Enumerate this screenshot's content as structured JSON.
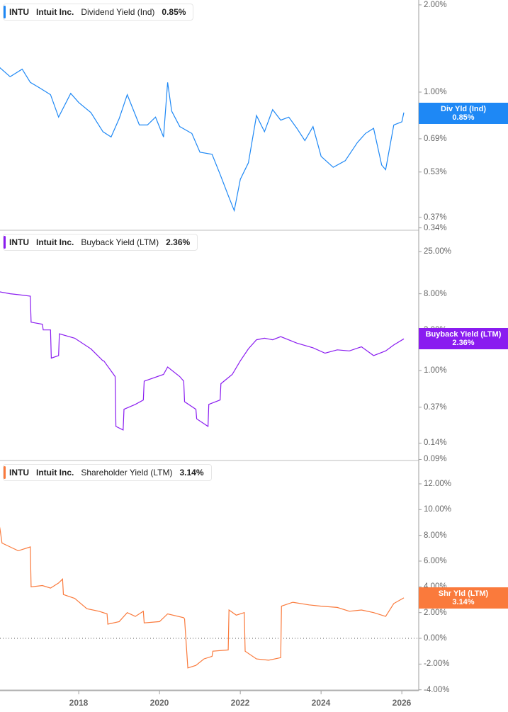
{
  "chart_data": [
    {
      "type": "line",
      "title": "INTU Intuit Inc. Dividend Yield (Ind) 0.85%",
      "ticker": "INTU",
      "company": "Intuit Inc.",
      "metric": "Dividend Yield (Ind)",
      "current_value": "0.85%",
      "tag_label": "Div Yld (Ind)",
      "color": "#1e88f5",
      "y_scale": "log",
      "yticks": [
        "2.00%",
        "1.00%",
        "0.85%",
        "0.69%",
        "0.53%",
        "0.37%",
        "0.34%"
      ],
      "ylim": [
        0.34,
        2.0
      ],
      "x": [
        2016.0,
        2016.3,
        2016.6,
        2016.8,
        2017.0,
        2017.3,
        2017.5,
        2017.8,
        2018.0,
        2018.3,
        2018.6,
        2018.8,
        2019.0,
        2019.2,
        2019.5,
        2019.7,
        2019.9,
        2020.1,
        2020.2,
        2020.3,
        2020.5,
        2020.8,
        2021.0,
        2021.3,
        2021.5,
        2021.7,
        2021.85,
        2022.0,
        2022.2,
        2022.4,
        2022.6,
        2022.8,
        2023.0,
        2023.2,
        2023.4,
        2023.6,
        2023.8,
        2024.0,
        2024.3,
        2024.6,
        2024.9,
        2025.1,
        2025.3,
        2025.5,
        2025.6,
        2025.8,
        2026.0,
        2026.05
      ],
      "values": [
        1.23,
        1.13,
        1.2,
        1.08,
        1.04,
        0.98,
        0.82,
        0.99,
        0.92,
        0.85,
        0.73,
        0.7,
        0.81,
        0.98,
        0.77,
        0.77,
        0.82,
        0.7,
        1.08,
        0.86,
        0.76,
        0.72,
        0.62,
        0.61,
        0.52,
        0.44,
        0.39,
        0.5,
        0.57,
        0.83,
        0.73,
        0.87,
        0.8,
        0.82,
        0.75,
        0.68,
        0.76,
        0.6,
        0.55,
        0.58,
        0.67,
        0.72,
        0.75,
        0.56,
        0.54,
        0.77,
        0.79,
        0.85
      ]
    },
    {
      "type": "line",
      "title": "INTU Intuit Inc. Buyback Yield (LTM) 2.36%",
      "ticker": "INTU",
      "company": "Intuit Inc.",
      "metric": "Buyback Yield (LTM)",
      "current_value": "2.36%",
      "tag_label": "Buyback Yield (LTM)",
      "color": "#8a1cf0",
      "y_scale": "log",
      "yticks": [
        "25.00%",
        "8.00%",
        "3.00%",
        "1.00%",
        "0.37%",
        "0.14%",
        "0.09%"
      ],
      "ylim": [
        0.09,
        25.0
      ],
      "x": [
        2016.0,
        2016.3,
        2016.5,
        2016.8,
        2016.82,
        2017.1,
        2017.12,
        2017.3,
        2017.32,
        2017.5,
        2017.52,
        2017.9,
        2018.3,
        2018.6,
        2018.62,
        2018.9,
        2018.92,
        2019.1,
        2019.12,
        2019.4,
        2019.6,
        2019.62,
        2020.1,
        2020.2,
        2020.5,
        2020.6,
        2020.62,
        2020.9,
        2020.92,
        2021.2,
        2021.22,
        2021.5,
        2021.52,
        2021.8,
        2022.0,
        2022.2,
        2022.4,
        2022.6,
        2022.8,
        2023.0,
        2023.4,
        2023.8,
        2024.1,
        2024.4,
        2024.7,
        2025.0,
        2025.3,
        2025.6,
        2025.8,
        2026.05
      ],
      "values": [
        8.5,
        8.0,
        7.8,
        7.5,
        3.7,
        3.5,
        3.0,
        3.0,
        1.4,
        1.5,
        2.7,
        2.4,
        1.8,
        1.3,
        1.3,
        0.85,
        0.22,
        0.2,
        0.35,
        0.4,
        0.45,
        0.75,
        0.9,
        1.1,
        0.85,
        0.75,
        0.43,
        0.35,
        0.27,
        0.22,
        0.4,
        0.45,
        0.7,
        0.9,
        1.3,
        1.8,
        2.3,
        2.4,
        2.3,
        2.5,
        2.1,
        1.85,
        1.6,
        1.75,
        1.7,
        1.9,
        1.5,
        1.7,
        2.0,
        2.36
      ]
    },
    {
      "type": "line",
      "title": "INTU Intuit Inc. Shareholder Yield (LTM) 3.14%",
      "ticker": "INTU",
      "company": "Intuit Inc.",
      "metric": "Shareholder Yield (LTM)",
      "current_value": "3.14%",
      "tag_label": "Shr Yld (LTM)",
      "color": "#fa7a3c",
      "y_scale": "linear",
      "yticks": [
        "12.00%",
        "10.00%",
        "8.00%",
        "6.00%",
        "4.00%",
        "2.00%",
        "0.00%",
        "-2.00%",
        "-4.00%"
      ],
      "ylim": [
        -4.0,
        12.0
      ],
      "zero_line": "dotted",
      "x": [
        2016.0,
        2016.05,
        2016.1,
        2016.3,
        2016.5,
        2016.8,
        2016.82,
        2017.1,
        2017.3,
        2017.5,
        2017.6,
        2017.62,
        2017.9,
        2018.2,
        2018.5,
        2018.7,
        2018.72,
        2019.0,
        2019.2,
        2019.4,
        2019.6,
        2019.62,
        2020.0,
        2020.2,
        2020.6,
        2020.62,
        2020.7,
        2020.9,
        2021.1,
        2021.3,
        2021.32,
        2021.7,
        2021.72,
        2021.9,
        2022.1,
        2022.12,
        2022.4,
        2022.7,
        2023.0,
        2023.02,
        2023.3,
        2023.7,
        2024.0,
        2024.4,
        2024.7,
        2025.0,
        2025.3,
        2025.6,
        2025.8,
        2026.05
      ],
      "values": [
        9.3,
        8.5,
        7.4,
        7.1,
        6.8,
        7.1,
        4.0,
        4.1,
        3.9,
        4.3,
        4.6,
        3.4,
        3.1,
        2.3,
        2.1,
        1.9,
        1.1,
        1.3,
        2.0,
        1.7,
        2.1,
        1.2,
        1.3,
        1.9,
        1.6,
        1.5,
        -2.3,
        -2.1,
        -1.6,
        -1.4,
        -1.0,
        -0.9,
        2.2,
        1.8,
        2.0,
        -1.0,
        -1.6,
        -1.7,
        -1.5,
        2.5,
        2.8,
        2.6,
        2.5,
        2.4,
        2.1,
        2.2,
        2.0,
        1.7,
        2.7,
        3.14
      ]
    }
  ],
  "x_axis": {
    "ticks": [
      "2018",
      "2020",
      "2022",
      "2024",
      "2026"
    ]
  }
}
